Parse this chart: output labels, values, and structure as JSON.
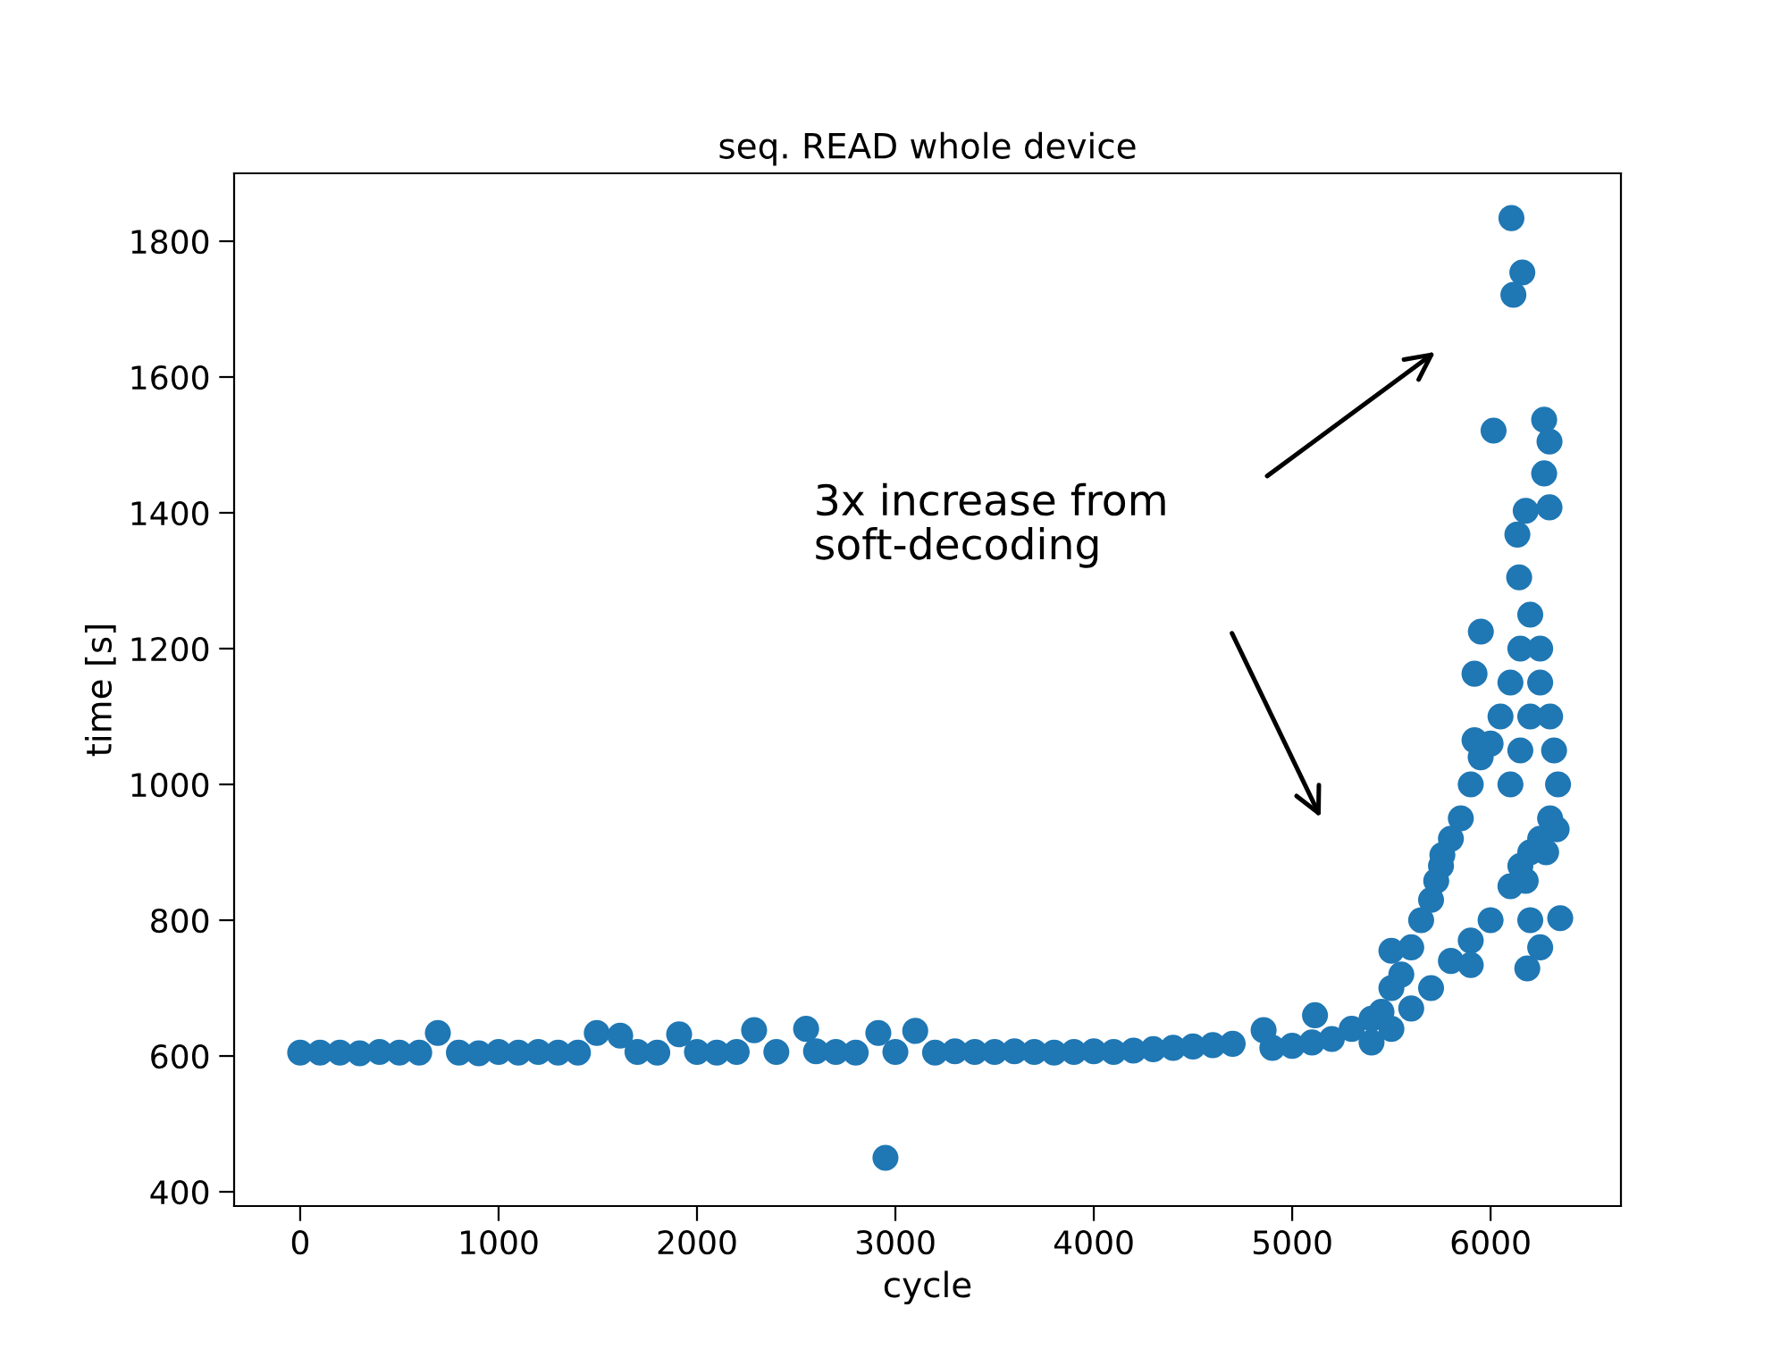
{
  "chart_data": {
    "type": "scatter",
    "title": "seq. READ whole device",
    "xlabel": "cycle",
    "ylabel": "time [s]",
    "xlim": [
      -333,
      6657
    ],
    "xticks": [
      0,
      1000,
      2000,
      3000,
      4000,
      5000,
      6000
    ],
    "ylim": [
      379,
      1900
    ],
    "yticks": [
      400,
      600,
      800,
      1000,
      1200,
      1400,
      1600,
      1800
    ],
    "grid": false,
    "marker": "circle",
    "annotations": [
      "3x increase from\nsoft-decoding"
    ],
    "series": [
      {
        "color": "#1f77b4",
        "x": [
          0,
          100,
          200,
          300,
          400,
          500,
          600,
          694,
          800,
          900,
          1000,
          1100,
          1200,
          1300,
          1400,
          1495,
          1613,
          1700,
          1800,
          1910,
          2000,
          2100,
          2200,
          2288,
          2400,
          2550,
          2600,
          2700,
          2800,
          2914,
          2950,
          3000,
          3100,
          3200,
          3300,
          3400,
          3500,
          3600,
          3700,
          3800,
          3900,
          4000,
          4100,
          4200,
          4300,
          4400,
          4500,
          4600,
          4700,
          4856,
          4900,
          5000,
          5100,
          5200,
          5300,
          5400,
          5450,
          5500,
          5550,
          5600,
          5650,
          5700,
          5750,
          5800,
          5850,
          5900,
          5950,
          6000,
          6050,
          5400,
          5500,
          5600,
          5700,
          5800,
          5900,
          6000,
          5115,
          5757,
          5500,
          5726,
          5919,
          5900,
          5951,
          5919,
          6015,
          6105,
          6160,
          6115,
          6270,
          6297,
          6270,
          6297,
          6177,
          6135,
          6144,
          6100,
          6150,
          6200,
          6250,
          6100,
          6150,
          6200,
          6250,
          6100,
          6150,
          6200,
          6250,
          6300,
          6200,
          6300,
          6185,
          6333,
          6351,
          6177,
          6250,
          6320,
          6340,
          6280
        ],
        "values": [
          605,
          605,
          605,
          604,
          606,
          605,
          605,
          634,
          605,
          604,
          606,
          605,
          606,
          605,
          605,
          634,
          630,
          606,
          605,
          632,
          606,
          605,
          606,
          638,
          606,
          640,
          607,
          606,
          605,
          634,
          450,
          606,
          637,
          605,
          607,
          606,
          606,
          607,
          606,
          605,
          606,
          607,
          606,
          608,
          610,
          612,
          614,
          616,
          618,
          638,
          612,
          615,
          620,
          625,
          640,
          655,
          665,
          700,
          720,
          760,
          800,
          830,
          880,
          920,
          950,
          1000,
          1040,
          1060,
          1100,
          620,
          640,
          670,
          700,
          740,
          770,
          800,
          660,
          896,
          755,
          858,
          1065,
          734,
          1225,
          1163,
          1521,
          1834,
          1754,
          1721,
          1537,
          1505,
          1458,
          1408,
          1403,
          1368,
          1305,
          850,
          880,
          900,
          920,
          1000,
          1050,
          1100,
          1150,
          1150,
          1200,
          1250,
          1200,
          1100,
          800,
          950,
          729,
          934,
          803,
          858,
          760,
          1050,
          1000,
          900
        ]
      }
    ]
  }
}
